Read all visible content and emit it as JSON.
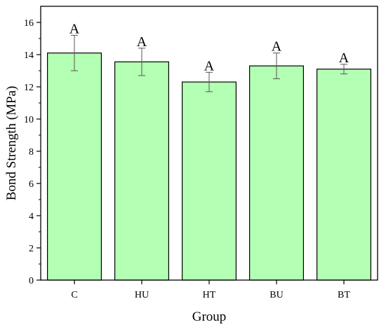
{
  "chart_data": {
    "type": "bar",
    "categories": [
      "C",
      "HU",
      "HT",
      "BU",
      "BT"
    ],
    "values": [
      14.1,
      13.55,
      12.3,
      13.3,
      13.1
    ],
    "errors": [
      1.1,
      0.85,
      0.6,
      0.8,
      0.3
    ],
    "significance_labels": [
      "A",
      "A",
      "A",
      "A",
      "A"
    ],
    "xlabel": "Group",
    "ylabel": "Bond Strength (MPa)",
    "ylim": [
      0,
      17
    ],
    "yticks": [
      0,
      2,
      4,
      6,
      8,
      10,
      12,
      14,
      16
    ],
    "grid": false,
    "bar_color": "#b3ffb3",
    "bar_edge_color": "#000000"
  }
}
